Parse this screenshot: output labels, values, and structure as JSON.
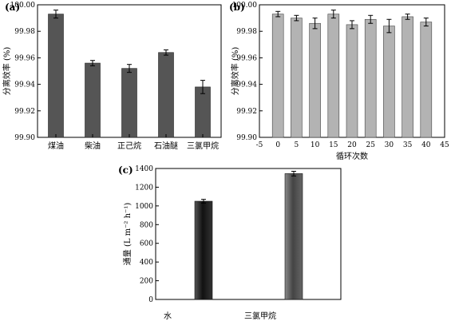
{
  "chart_data": [
    {
      "type": "bar",
      "panel_label": "(a)",
      "ylabel": "分离效率 (%)",
      "xlabel": "",
      "categories": [
        "煤油",
        "柴油",
        "正己烷",
        "石油醚",
        "三氯甲烷"
      ],
      "values": [
        99.993,
        99.956,
        99.952,
        99.964,
        99.938
      ],
      "errors": [
        0.003,
        0.002,
        0.003,
        0.002,
        0.005
      ],
      "ylim": [
        99.9,
        100.0
      ],
      "yticks": [
        "99.90",
        "99.92",
        "99.94",
        "99.96",
        "99.98",
        "100.00"
      ],
      "bar_color": "#555555",
      "grid": false
    },
    {
      "type": "bar",
      "panel_label": "(b)",
      "ylabel": "分离效率 (%)",
      "xlabel": "循环次数",
      "x": [
        0,
        5,
        10,
        15,
        20,
        25,
        30,
        35,
        40
      ],
      "values": [
        99.993,
        99.99,
        99.986,
        99.993,
        99.985,
        99.989,
        99.984,
        99.991,
        99.987
      ],
      "errors": [
        0.002,
        0.002,
        0.004,
        0.003,
        0.003,
        0.003,
        0.005,
        0.002,
        0.003
      ],
      "xlim": [
        -5,
        45
      ],
      "xticks": [
        "-5",
        "0",
        "5",
        "10",
        "15",
        "20",
        "25",
        "30",
        "35",
        "40",
        "45"
      ],
      "ylim": [
        99.9,
        100.0
      ],
      "yticks": [
        "99.90",
        "99.92",
        "99.94",
        "99.96",
        "99.98",
        "100.00"
      ],
      "bar_color": "#b3b3b3",
      "grid": false
    },
    {
      "type": "bar",
      "panel_label": "(c)",
      "ylabel": "通量 (L m⁻² h⁻¹)",
      "xlabel": "",
      "categories": [
        "水",
        "三氯甲烷"
      ],
      "values": [
        1050,
        1345
      ],
      "errors": [
        20,
        25
      ],
      "ylim": [
        0,
        1400
      ],
      "yticks": [
        "0",
        "200",
        "400",
        "600",
        "800",
        "1000",
        "1200",
        "1400"
      ],
      "bar_colors": [
        "#222222",
        "#5a5a5a"
      ],
      "grid": false
    }
  ]
}
